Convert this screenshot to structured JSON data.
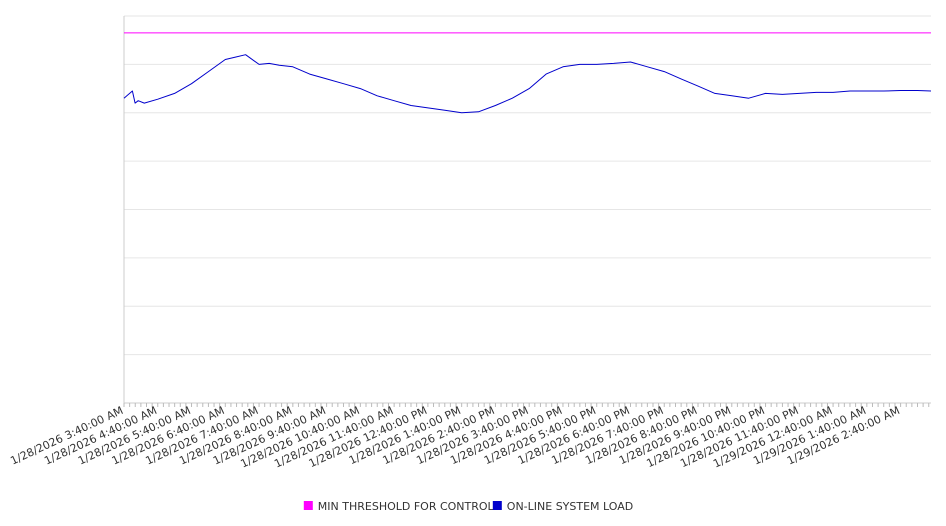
{
  "chart_data": {
    "type": "line",
    "title": "",
    "xlabel": "",
    "ylabel": "",
    "y_tick_labels_visible": false,
    "grid": "horizontal",
    "legend_position": "bottom-center",
    "ylim": [
      0,
      8
    ],
    "x_tick_labels": [
      "1/28/2026 3:40:00 AM",
      "1/28/2026 4:40:00 AM",
      "1/28/2026 5:40:00 AM",
      "1/28/2026 6:40:00 AM",
      "1/28/2026 7:40:00 AM",
      "1/28/2026 8:40:00 AM",
      "1/28/2026 9:40:00 AM",
      "1/28/2026 10:40:00 AM",
      "1/28/2026 11:40:00 AM",
      "1/28/2026 12:40:00 PM",
      "1/28/2026 1:40:00 PM",
      "1/28/2026 2:40:00 PM",
      "1/28/2026 3:40:00 PM",
      "1/28/2026 4:40:00 PM",
      "1/28/2026 5:40:00 PM",
      "1/28/2026 6:40:00 PM",
      "1/28/2026 7:40:00 PM",
      "1/28/2026 8:40:00 PM",
      "1/28/2026 9:40:00 PM",
      "1/28/2026 10:40:00 PM",
      "1/28/2026 11:40:00 PM",
      "1/29/2026 12:40:00 AM",
      "1/29/2026 1:40:00 AM",
      "1/29/2026 2:40:00 AM"
    ],
    "x_span_hours": 23.9,
    "series": [
      {
        "name": "MIN THRESHOLD FOR CONTROL",
        "color": "#ff00ff",
        "x": [
          0,
          23.9
        ],
        "values": [
          7.65,
          7.65
        ]
      },
      {
        "name": "ON-LINE SYSTEM LOAD",
        "color": "#0000cc",
        "x": [
          0,
          0.25,
          0.33,
          0.42,
          0.6,
          1.0,
          1.5,
          2.0,
          2.5,
          3.0,
          3.3,
          3.6,
          4.0,
          4.3,
          4.6,
          5.0,
          5.5,
          6.0,
          6.5,
          7.0,
          7.5,
          8.0,
          8.5,
          9.0,
          9.5,
          10.0,
          10.5,
          11.0,
          11.5,
          12.0,
          12.5,
          13.0,
          13.5,
          14.0,
          14.5,
          15.0,
          15.5,
          16.0,
          16.5,
          17.0,
          17.5,
          18.0,
          18.5,
          19.0,
          19.5,
          20.0,
          20.5,
          21.0,
          21.5,
          22.0,
          22.5,
          23.0,
          23.5,
          23.9
        ],
        "values": [
          6.3,
          6.45,
          6.2,
          6.25,
          6.2,
          6.28,
          6.4,
          6.6,
          6.85,
          7.1,
          7.15,
          7.2,
          7.0,
          7.02,
          6.98,
          6.95,
          6.8,
          6.7,
          6.6,
          6.5,
          6.35,
          6.25,
          6.15,
          6.1,
          6.05,
          6.0,
          6.02,
          6.15,
          6.3,
          6.5,
          6.8,
          6.95,
          7.0,
          7.0,
          7.02,
          7.05,
          6.95,
          6.85,
          6.7,
          6.55,
          6.4,
          6.35,
          6.3,
          6.4,
          6.38,
          6.4,
          6.42,
          6.42,
          6.45,
          6.45,
          6.45,
          6.46,
          6.46,
          6.45
        ]
      }
    ]
  }
}
